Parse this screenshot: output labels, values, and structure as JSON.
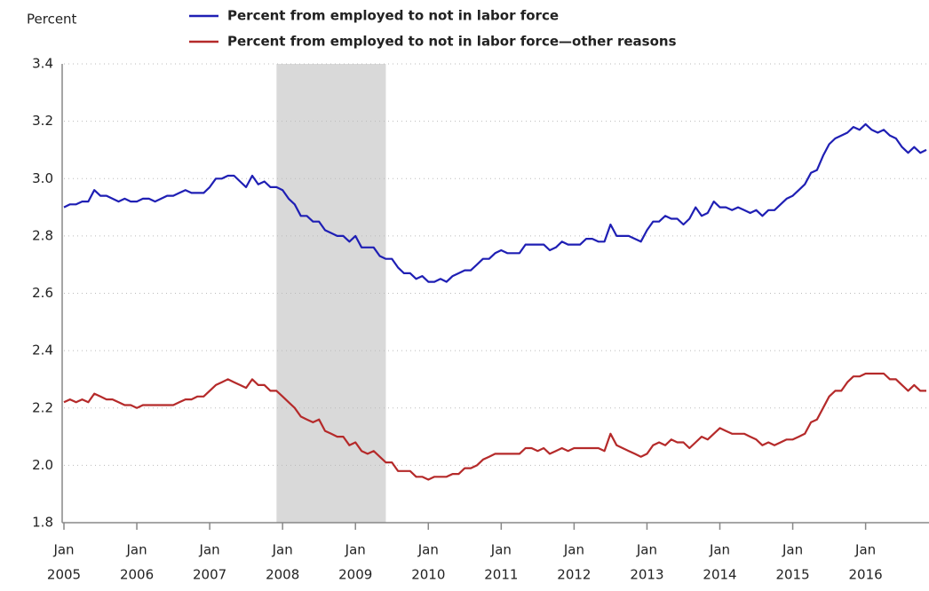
{
  "chart_data": {
    "type": "line",
    "y_label": "Percent",
    "x": [
      "2005-01",
      "2005-02",
      "2005-03",
      "2005-04",
      "2005-05",
      "2005-06",
      "2005-07",
      "2005-08",
      "2005-09",
      "2005-10",
      "2005-11",
      "2005-12",
      "2006-01",
      "2006-02",
      "2006-03",
      "2006-04",
      "2006-05",
      "2006-06",
      "2006-07",
      "2006-08",
      "2006-09",
      "2006-10",
      "2006-11",
      "2006-12",
      "2007-01",
      "2007-02",
      "2007-03",
      "2007-04",
      "2007-05",
      "2007-06",
      "2007-07",
      "2007-08",
      "2007-09",
      "2007-10",
      "2007-11",
      "2007-12",
      "2008-01",
      "2008-02",
      "2008-03",
      "2008-04",
      "2008-05",
      "2008-06",
      "2008-07",
      "2008-08",
      "2008-09",
      "2008-10",
      "2008-11",
      "2008-12",
      "2009-01",
      "2009-02",
      "2009-03",
      "2009-04",
      "2009-05",
      "2009-06",
      "2009-07",
      "2009-08",
      "2009-09",
      "2009-10",
      "2009-11",
      "2009-12",
      "2010-01",
      "2010-02",
      "2010-03",
      "2010-04",
      "2010-05",
      "2010-06",
      "2010-07",
      "2010-08",
      "2010-09",
      "2010-10",
      "2010-11",
      "2010-12",
      "2011-01",
      "2011-02",
      "2011-03",
      "2011-04",
      "2011-05",
      "2011-06",
      "2011-07",
      "2011-08",
      "2011-09",
      "2011-10",
      "2011-11",
      "2011-12",
      "2012-01",
      "2012-02",
      "2012-03",
      "2012-04",
      "2012-05",
      "2012-06",
      "2012-07",
      "2012-08",
      "2012-09",
      "2012-10",
      "2012-11",
      "2012-12",
      "2013-01",
      "2013-02",
      "2013-03",
      "2013-04",
      "2013-05",
      "2013-06",
      "2013-07",
      "2013-08",
      "2013-09",
      "2013-10",
      "2013-11",
      "2013-12",
      "2014-01",
      "2014-02",
      "2014-03",
      "2014-04",
      "2014-05",
      "2014-06",
      "2014-07",
      "2014-08",
      "2014-09",
      "2014-10",
      "2014-11",
      "2014-12",
      "2015-01",
      "2015-02",
      "2015-03",
      "2015-04",
      "2015-05",
      "2015-06",
      "2015-07",
      "2015-08",
      "2015-09",
      "2015-10",
      "2015-11",
      "2015-12",
      "2016-01",
      "2016-02",
      "2016-03",
      "2016-04",
      "2016-05",
      "2016-06",
      "2016-07",
      "2016-08",
      "2016-09",
      "2016-10",
      "2016-11"
    ],
    "series": [
      {
        "name": "Percent from employed to not in labor force",
        "color": "#1f1fb4",
        "values": [
          2.9,
          2.91,
          2.91,
          2.92,
          2.92,
          2.96,
          2.94,
          2.94,
          2.93,
          2.92,
          2.93,
          2.92,
          2.92,
          2.93,
          2.93,
          2.92,
          2.93,
          2.94,
          2.94,
          2.95,
          2.96,
          2.95,
          2.95,
          2.95,
          2.97,
          3.0,
          3.0,
          3.01,
          3.01,
          2.99,
          2.97,
          3.01,
          2.98,
          2.99,
          2.97,
          2.97,
          2.96,
          2.93,
          2.91,
          2.87,
          2.87,
          2.85,
          2.85,
          2.82,
          2.81,
          2.8,
          2.8,
          2.78,
          2.8,
          2.76,
          2.76,
          2.76,
          2.73,
          2.72,
          2.72,
          2.69,
          2.67,
          2.67,
          2.65,
          2.66,
          2.64,
          2.64,
          2.65,
          2.64,
          2.66,
          2.67,
          2.68,
          2.68,
          2.7,
          2.72,
          2.72,
          2.74,
          2.75,
          2.74,
          2.74,
          2.74,
          2.77,
          2.77,
          2.77,
          2.77,
          2.75,
          2.76,
          2.78,
          2.77,
          2.77,
          2.77,
          2.79,
          2.79,
          2.78,
          2.78,
          2.84,
          2.8,
          2.8,
          2.8,
          2.79,
          2.78,
          2.82,
          2.85,
          2.85,
          2.87,
          2.86,
          2.86,
          2.84,
          2.86,
          2.9,
          2.87,
          2.88,
          2.92,
          2.9,
          2.9,
          2.89,
          2.9,
          2.89,
          2.88,
          2.89,
          2.87,
          2.89,
          2.89,
          2.91,
          2.93,
          2.94,
          2.96,
          2.98,
          3.02,
          3.03,
          3.08,
          3.12,
          3.14,
          3.15,
          3.16,
          3.18,
          3.17,
          3.19,
          3.17,
          3.16,
          3.17,
          3.15,
          3.14,
          3.11,
          3.09,
          3.11,
          3.09,
          3.1
        ]
      },
      {
        "name": "Percent from employed to not in labor force—other reasons",
        "color": "#b52a2a",
        "values": [
          2.22,
          2.23,
          2.22,
          2.23,
          2.22,
          2.25,
          2.24,
          2.23,
          2.23,
          2.22,
          2.21,
          2.21,
          2.2,
          2.21,
          2.21,
          2.21,
          2.21,
          2.21,
          2.21,
          2.22,
          2.23,
          2.23,
          2.24,
          2.24,
          2.26,
          2.28,
          2.29,
          2.3,
          2.29,
          2.28,
          2.27,
          2.3,
          2.28,
          2.28,
          2.26,
          2.26,
          2.24,
          2.22,
          2.2,
          2.17,
          2.16,
          2.15,
          2.16,
          2.12,
          2.11,
          2.1,
          2.1,
          2.07,
          2.08,
          2.05,
          2.04,
          2.05,
          2.03,
          2.01,
          2.01,
          1.98,
          1.98,
          1.98,
          1.96,
          1.96,
          1.95,
          1.96,
          1.96,
          1.96,
          1.97,
          1.97,
          1.99,
          1.99,
          2.0,
          2.02,
          2.03,
          2.04,
          2.04,
          2.04,
          2.04,
          2.04,
          2.06,
          2.06,
          2.05,
          2.06,
          2.04,
          2.05,
          2.06,
          2.05,
          2.06,
          2.06,
          2.06,
          2.06,
          2.06,
          2.05,
          2.11,
          2.07,
          2.06,
          2.05,
          2.04,
          2.03,
          2.04,
          2.07,
          2.08,
          2.07,
          2.09,
          2.08,
          2.08,
          2.06,
          2.08,
          2.1,
          2.09,
          2.11,
          2.13,
          2.12,
          2.11,
          2.11,
          2.11,
          2.1,
          2.09,
          2.07,
          2.08,
          2.07,
          2.08,
          2.09,
          2.09,
          2.1,
          2.11,
          2.15,
          2.16,
          2.2,
          2.24,
          2.26,
          2.26,
          2.29,
          2.31,
          2.31,
          2.32,
          2.32,
          2.32,
          2.32,
          2.3,
          2.3,
          2.28,
          2.26,
          2.28,
          2.26,
          2.26
        ]
      }
    ],
    "xlim": [
      "2005-01",
      "2016-11"
    ],
    "xticks": [
      {
        "value": "2005-01",
        "label": [
          "Jan",
          "2005"
        ]
      },
      {
        "value": "2006-01",
        "label": [
          "Jan",
          "2006"
        ]
      },
      {
        "value": "2007-01",
        "label": [
          "Jan",
          "2007"
        ]
      },
      {
        "value": "2008-01",
        "label": [
          "Jan",
          "2008"
        ]
      },
      {
        "value": "2009-01",
        "label": [
          "Jan",
          "2009"
        ]
      },
      {
        "value": "2010-01",
        "label": [
          "Jan",
          "2010"
        ]
      },
      {
        "value": "2011-01",
        "label": [
          "Jan",
          "2011"
        ]
      },
      {
        "value": "2012-01",
        "label": [
          "Jan",
          "2012"
        ]
      },
      {
        "value": "2013-01",
        "label": [
          "Jan",
          "2013"
        ]
      },
      {
        "value": "2014-01",
        "label": [
          "Jan",
          "2014"
        ]
      },
      {
        "value": "2015-01",
        "label": [
          "Jan",
          "2015"
        ]
      },
      {
        "value": "2016-01",
        "label": [
          "Jan",
          "2016"
        ]
      }
    ],
    "ylim": [
      1.8,
      3.4
    ],
    "yticks": [
      {
        "value": 1.8,
        "label": "1.8"
      },
      {
        "value": 2,
        "label": "2.0"
      },
      2.2,
      2.4,
      2.6,
      2.8,
      {
        "value": 3,
        "label": "3.0"
      },
      3.2,
      3.4
    ],
    "grid": true,
    "shade": {
      "x": [
        "2007-12",
        "2009-06"
      ],
      "color": "#d9d9d9"
    }
  }
}
